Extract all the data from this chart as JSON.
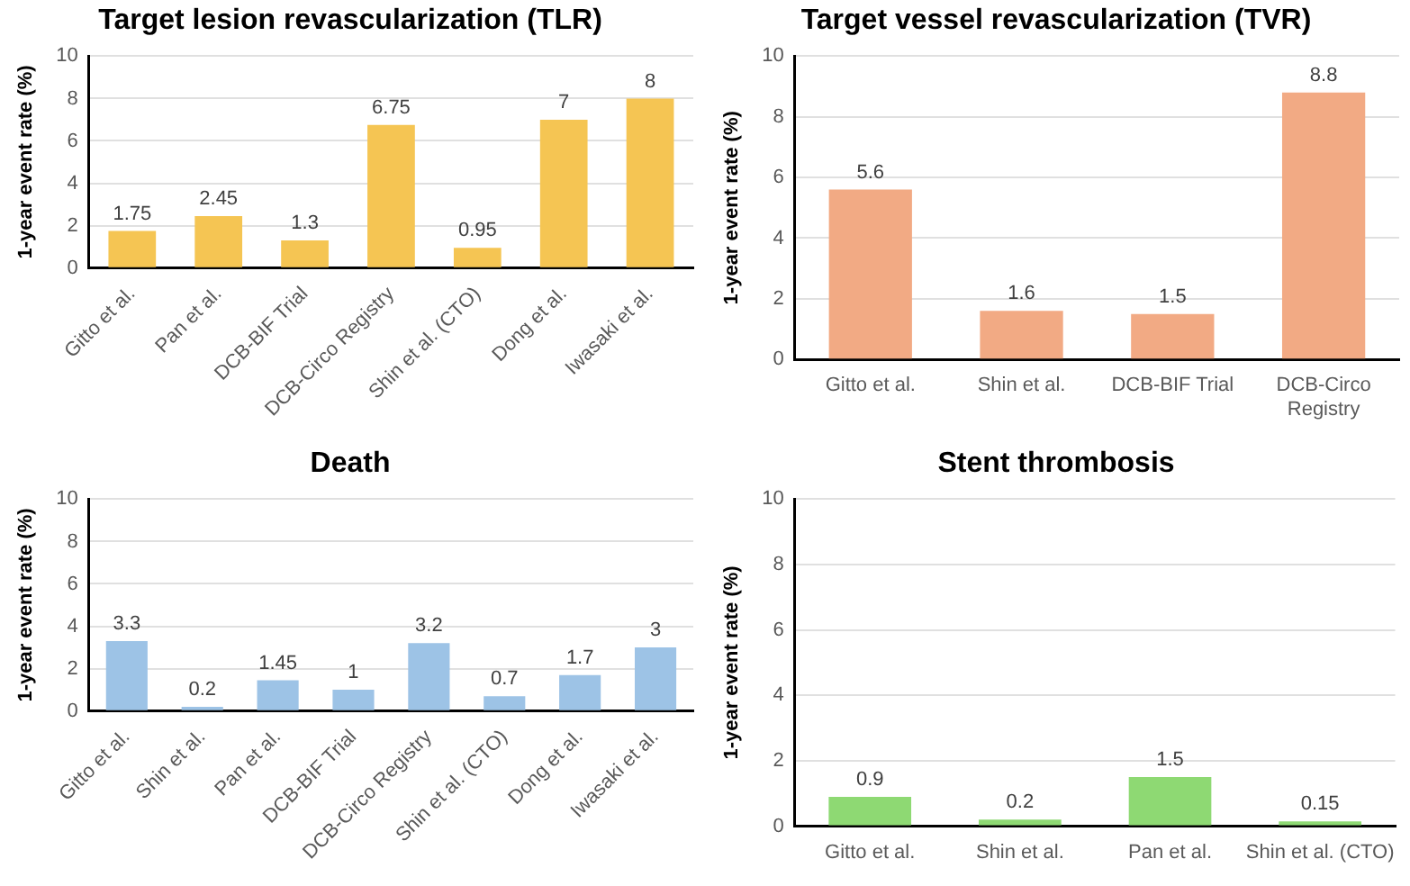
{
  "chart_data": [
    {
      "type": "bar",
      "title": "Target lesion revascularization (TLR)",
      "ylabel": "1-year event rate (%)",
      "categories": [
        "Gitto et al.",
        "Pan et al.",
        "DCB-BIF Trial",
        "DCB-Circo Registry",
        "Shin et al. (CTO)",
        "Dong et al.",
        "Iwasaki et al."
      ],
      "values": [
        1.75,
        2.45,
        1.3,
        6.75,
        0.95,
        7,
        8
      ],
      "color": "#f5c553",
      "ylim": [
        0,
        10
      ],
      "yticks": [
        0,
        2,
        4,
        6,
        8,
        10
      ],
      "grid": "y",
      "data_labels": true
    },
    {
      "type": "bar",
      "title": "Target vessel revascularization (TVR)",
      "ylabel": "1-year event rate (%)",
      "categories": [
        "Gitto et al.",
        "Shin et al.",
        "DCB-BIF Trial",
        "DCB-Circo Registry"
      ],
      "values": [
        5.6,
        1.6,
        1.5,
        8.8
      ],
      "color": "#f2aa84",
      "ylim": [
        0,
        10
      ],
      "yticks": [
        0,
        2,
        4,
        6,
        8,
        10
      ],
      "grid": "y",
      "data_labels": true
    },
    {
      "type": "bar",
      "title": "Death",
      "ylabel": "1-year event rate (%)",
      "categories": [
        "Gitto et al.",
        "Shin et al.",
        "Pan et al.",
        "DCB-BIF Trial",
        "DCB-Circo Registry",
        "Shin et al. (CTO)",
        "Dong et al.",
        "Iwasaki et al."
      ],
      "values": [
        3.3,
        0.2,
        1.45,
        1,
        3.2,
        0.7,
        1.7,
        3
      ],
      "color": "#9dc3e6",
      "ylim": [
        0,
        10
      ],
      "yticks": [
        0,
        2,
        4,
        6,
        8,
        10
      ],
      "grid": "y",
      "data_labels": true
    },
    {
      "type": "bar",
      "title": "Stent thrombosis",
      "ylabel": "1-year event rate (%)",
      "categories": [
        "Gitto et al.",
        "Shin et al.",
        "Pan et al.",
        "Shin et al. (CTO)"
      ],
      "values": [
        0.9,
        0.2,
        1.5,
        0.15
      ],
      "color": "#8ed973",
      "ylim": [
        0,
        10
      ],
      "yticks": [
        0,
        2,
        4,
        6,
        8,
        10
      ],
      "grid": "y",
      "data_labels": true
    }
  ]
}
